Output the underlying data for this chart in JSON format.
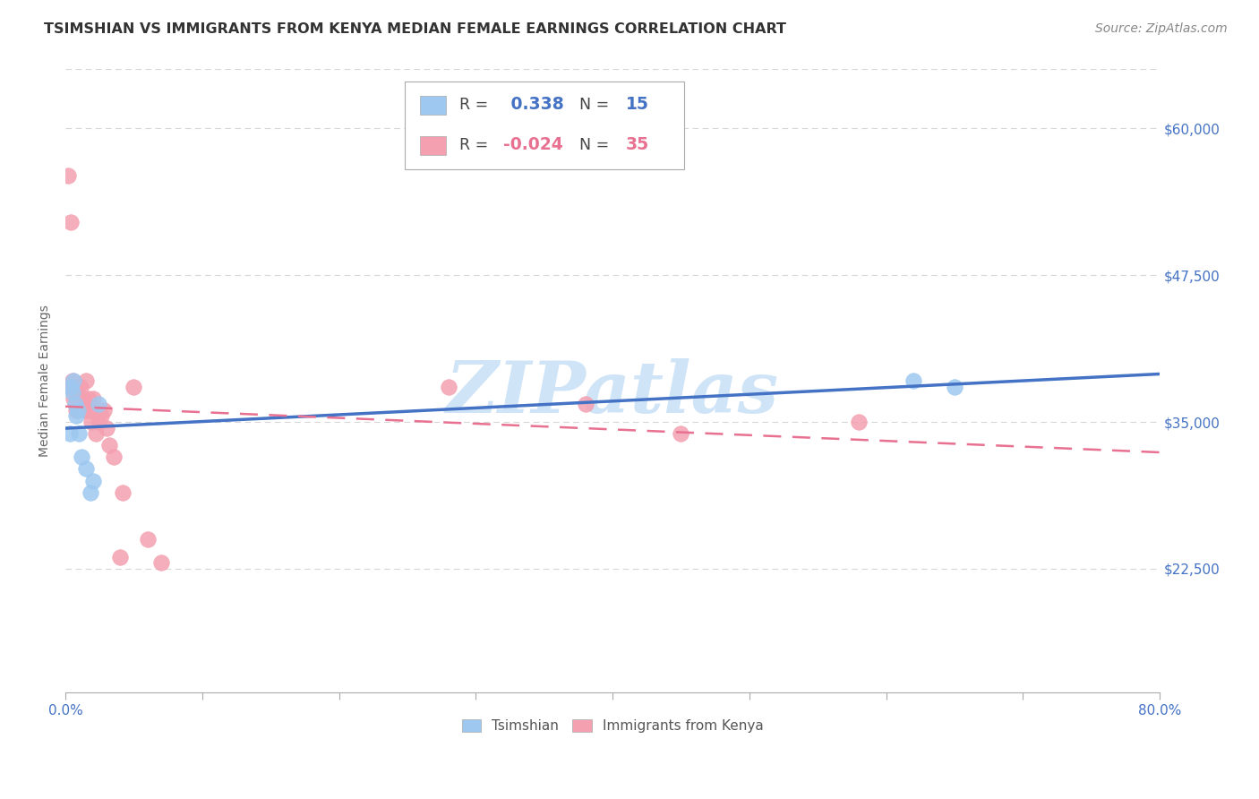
{
  "title": "TSIMSHIAN VS IMMIGRANTS FROM KENYA MEDIAN FEMALE EARNINGS CORRELATION CHART",
  "source": "Source: ZipAtlas.com",
  "ylabel": "Median Female Earnings",
  "xlim": [
    0.0,
    0.8
  ],
  "ylim": [
    12000,
    65000
  ],
  "xtick_labels_show": [
    "0.0%",
    "80.0%"
  ],
  "xtick_values": [
    0.0,
    0.1,
    0.2,
    0.3,
    0.4,
    0.5,
    0.6,
    0.7,
    0.8
  ],
  "ytick_values": [
    22500,
    35000,
    47500,
    60000
  ],
  "ytick_labels": [
    "$22,500",
    "$35,000",
    "$47,500",
    "$60,000"
  ],
  "grid_color": "#cccccc",
  "background_color": "#ffffff",
  "tsimshian_x": [
    0.003,
    0.004,
    0.005,
    0.006,
    0.007,
    0.008,
    0.009,
    0.01,
    0.012,
    0.015,
    0.018,
    0.02,
    0.024,
    0.62,
    0.65
  ],
  "tsimshian_y": [
    34000,
    38000,
    37500,
    38500,
    36500,
    35500,
    36000,
    34000,
    32000,
    31000,
    29000,
    30000,
    36500,
    38500,
    38000
  ],
  "tsimshian_color": "#9EC8F0",
  "tsimshian_R": 0.338,
  "tsimshian_N": 15,
  "kenya_x": [
    0.002,
    0.003,
    0.004,
    0.005,
    0.006,
    0.007,
    0.008,
    0.009,
    0.01,
    0.011,
    0.012,
    0.013,
    0.014,
    0.015,
    0.016,
    0.017,
    0.018,
    0.019,
    0.02,
    0.022,
    0.024,
    0.026,
    0.028,
    0.03,
    0.032,
    0.035,
    0.04,
    0.042,
    0.05,
    0.06,
    0.07,
    0.28,
    0.38,
    0.45,
    0.58
  ],
  "kenya_y": [
    56000,
    38000,
    52000,
    38500,
    37000,
    38000,
    36000,
    38000,
    37000,
    38000,
    36500,
    37000,
    36000,
    38500,
    36000,
    37000,
    36000,
    35000,
    37000,
    34000,
    35000,
    35500,
    36000,
    34500,
    33000,
    32000,
    23500,
    29000,
    38000,
    25000,
    23000,
    38000,
    36500,
    34000,
    35000
  ],
  "kenya_color": "#F4A0B0",
  "kenya_R": -0.024,
  "kenya_N": 35,
  "trend_tsimshian_color": "#4472C4",
  "trend_kenya_color": "#E87090",
  "watermark": "ZIPatlas",
  "watermark_color": "#d0e4f7",
  "legend_label_tsimshian": "Tsimshian",
  "legend_label_kenya": "Immigrants from Kenya",
  "title_fontsize": 11.5,
  "axis_label_fontsize": 10,
  "tick_fontsize": 11,
  "source_fontsize": 10
}
